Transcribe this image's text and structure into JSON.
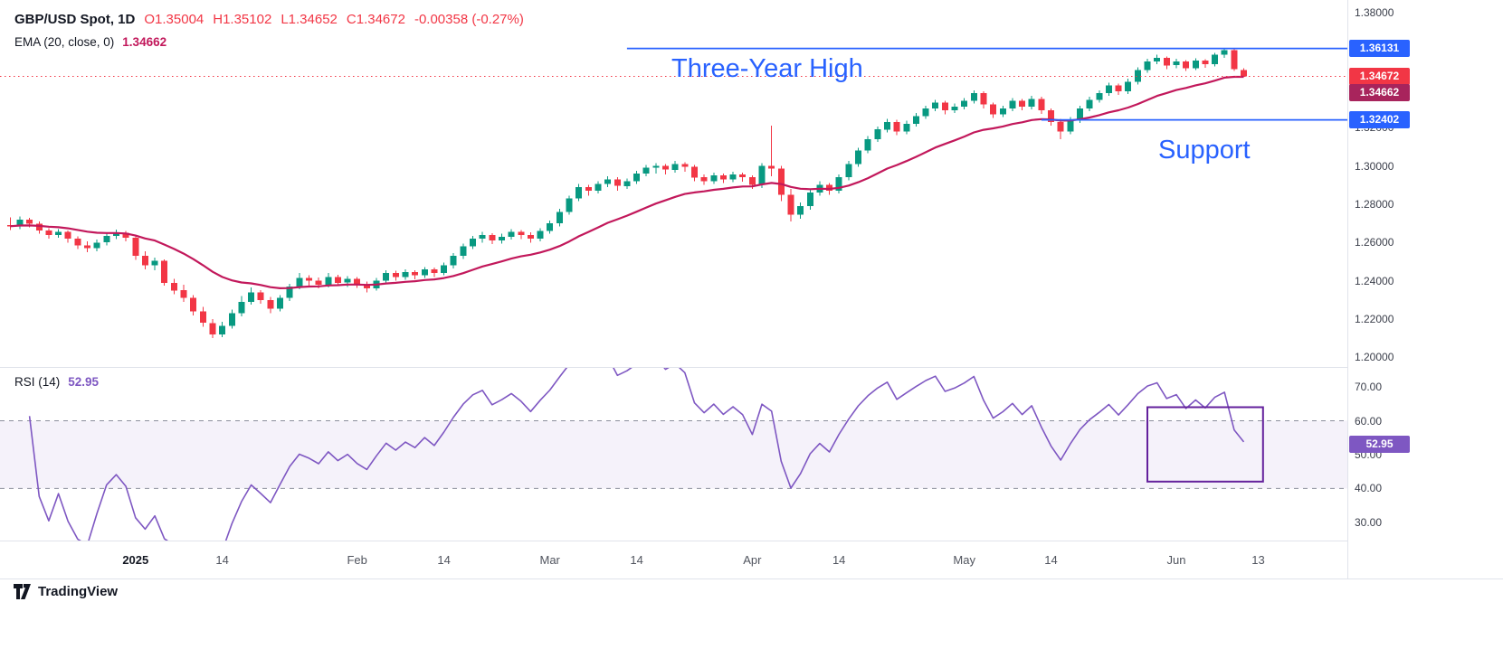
{
  "header": {
    "symbol": "GBP/USD Spot, 1D",
    "o": "O1.35004",
    "h": "H1.35102",
    "l": "L1.34652",
    "c": "C1.34672",
    "change": "-0.00358 (-0.27%)",
    "ema_label": "EMA (20, close, 0)",
    "ema_value": "1.34662"
  },
  "rsi_header": {
    "label": "RSI (14)",
    "value": "52.95"
  },
  "annotations": {
    "high_label": "Three-Year High",
    "support_label": "Support"
  },
  "watermark": {
    "text": "TradingView"
  },
  "colors": {
    "up": "#089981",
    "down": "#f23645",
    "ema": "#c2185b",
    "level": "#2962ff",
    "rsi": "#7e57c2",
    "rsi_band_line": "#8b8e9c",
    "rsi_box": "#63209c"
  },
  "price_axis": {
    "ticks": [
      {
        "label": "1.38000",
        "price": 1.38
      },
      {
        "label": "1.32000",
        "price": 1.32
      },
      {
        "label": "1.30000",
        "price": 1.3
      },
      {
        "label": "1.28000",
        "price": 1.28
      },
      {
        "label": "1.26000",
        "price": 1.26
      },
      {
        "label": "1.24000",
        "price": 1.24
      },
      {
        "label": "1.22000",
        "price": 1.22
      },
      {
        "label": "1.20000",
        "price": 1.2
      }
    ],
    "badges": [
      {
        "text": "1.36131",
        "price": 1.36131,
        "bg": "#2962ff"
      },
      {
        "text": "1.34672",
        "price": 1.34672,
        "bg": "#f23645"
      },
      {
        "text": "1.34662",
        "price": 1.34662,
        "bg": "#a8245c"
      },
      {
        "text": "1.32402",
        "price": 1.32402,
        "bg": "#2962ff"
      }
    ]
  },
  "rsi_axis": {
    "ticks": [
      {
        "label": "70.00",
        "v": 70
      },
      {
        "label": "60.00",
        "v": 60
      },
      {
        "label": "50.00",
        "v": 50
      },
      {
        "label": "40.00",
        "v": 40
      },
      {
        "label": "30.00",
        "v": 30
      }
    ],
    "badge": {
      "text": "52.95",
      "v": 52.95,
      "bg": "#7e57c2"
    }
  },
  "time_axis": [
    {
      "label": "2025",
      "i": 13,
      "major": true
    },
    {
      "label": "14",
      "i": 22
    },
    {
      "label": "Feb",
      "i": 36
    },
    {
      "label": "14",
      "i": 45
    },
    {
      "label": "Mar",
      "i": 56
    },
    {
      "label": "14",
      "i": 65
    },
    {
      "label": "Apr",
      "i": 77
    },
    {
      "label": "14",
      "i": 86
    },
    {
      "label": "May",
      "i": 99
    },
    {
      "label": "14",
      "i": 108
    },
    {
      "label": "Jun",
      "i": 121
    },
    {
      "label": "13",
      "i": 129.5
    }
  ],
  "chart_data": {
    "type": "candlestick",
    "title": "GBP/USD Spot, 1D",
    "xlabel": "",
    "ylabel": "",
    "price_ylim": [
      1.195,
      1.3866
    ],
    "last_price": 1.34672,
    "ohlc_readout": {
      "open": 1.35004,
      "high": 1.35102,
      "low": 1.34652,
      "close": 1.34672,
      "change": -0.00358,
      "change_pct": -0.27
    },
    "overlays": [
      {
        "name": "EMA",
        "type": "ema",
        "period": 20,
        "source": "close",
        "offset": 0,
        "last_value": 1.34662
      }
    ],
    "levels": [
      {
        "price": 1.36131,
        "label": "Three-Year High",
        "from_i": 64
      },
      {
        "price": 1.32402,
        "label": "Support",
        "from_i": 107
      }
    ],
    "subpanel": {
      "type": "rsi",
      "period": 14,
      "last_value": 52.95,
      "band": [
        40,
        60
      ],
      "ylim": [
        24.6,
        75.9
      ],
      "box": {
        "i1": 118,
        "i2": 130,
        "top": 64,
        "bottom": 42
      }
    },
    "candles": [
      [
        1.269,
        1.273,
        1.2665,
        1.2685
      ],
      [
        1.2685,
        1.2735,
        1.267,
        1.272
      ],
      [
        1.272,
        1.2728,
        1.268,
        1.2698
      ],
      [
        1.2698,
        1.271,
        1.2645,
        1.2662
      ],
      [
        1.2662,
        1.2675,
        1.262,
        1.264
      ],
      [
        1.264,
        1.267,
        1.2625,
        1.2655
      ],
      [
        1.2655,
        1.2662,
        1.26,
        1.262
      ],
      [
        1.262,
        1.2632,
        1.2565,
        1.2585
      ],
      [
        1.2585,
        1.2605,
        1.255,
        1.257
      ],
      [
        1.257,
        1.2615,
        1.2555,
        1.26
      ],
      [
        1.26,
        1.265,
        1.2585,
        1.2635
      ],
      [
        1.2635,
        1.2668,
        1.2618,
        1.265
      ],
      [
        1.265,
        1.266,
        1.2605,
        1.2625
      ],
      [
        1.2625,
        1.2638,
        1.251,
        1.253
      ],
      [
        1.253,
        1.2555,
        1.246,
        1.248
      ],
      [
        1.248,
        1.252,
        1.2455,
        1.2505
      ],
      [
        1.2505,
        1.2512,
        1.2375,
        1.239
      ],
      [
        1.239,
        1.241,
        1.233,
        1.235
      ],
      [
        1.235,
        1.238,
        1.229,
        1.231
      ],
      [
        1.231,
        1.2325,
        1.222,
        1.224
      ],
      [
        1.224,
        1.2265,
        1.216,
        1.218
      ],
      [
        1.218,
        1.22,
        1.21,
        1.212
      ],
      [
        1.212,
        1.2185,
        1.2105,
        1.2165
      ],
      [
        1.2165,
        1.225,
        1.215,
        1.223
      ],
      [
        1.223,
        1.232,
        1.2215,
        1.229
      ],
      [
        1.229,
        1.2365,
        1.2275,
        1.234
      ],
      [
        1.234,
        1.235,
        1.228,
        1.23
      ],
      [
        1.23,
        1.2315,
        1.223,
        1.2255
      ],
      [
        1.2255,
        1.2325,
        1.224,
        1.231
      ],
      [
        1.231,
        1.2385,
        1.2295,
        1.237
      ],
      [
        1.237,
        1.244,
        1.2355,
        1.2415
      ],
      [
        1.2415,
        1.243,
        1.2375,
        1.24
      ],
      [
        1.24,
        1.2418,
        1.236,
        1.238
      ],
      [
        1.238,
        1.244,
        1.2365,
        1.242
      ],
      [
        1.242,
        1.2432,
        1.2372,
        1.239
      ],
      [
        1.239,
        1.2425,
        1.2368,
        1.241
      ],
      [
        1.241,
        1.242,
        1.2362,
        1.238
      ],
      [
        1.238,
        1.2395,
        1.234,
        1.236
      ],
      [
        1.236,
        1.2415,
        1.2348,
        1.24
      ],
      [
        1.24,
        1.2455,
        1.2388,
        1.244
      ],
      [
        1.244,
        1.2452,
        1.24,
        1.242
      ],
      [
        1.242,
        1.246,
        1.2405,
        1.2445
      ],
      [
        1.2445,
        1.2455,
        1.2408,
        1.243
      ],
      [
        1.243,
        1.2472,
        1.2415,
        1.246
      ],
      [
        1.246,
        1.247,
        1.242,
        1.244
      ],
      [
        1.244,
        1.2495,
        1.2428,
        1.248
      ],
      [
        1.248,
        1.2545,
        1.2465,
        1.253
      ],
      [
        1.253,
        1.2595,
        1.2515,
        1.258
      ],
      [
        1.258,
        1.2635,
        1.2565,
        1.262
      ],
      [
        1.262,
        1.2655,
        1.26,
        1.264
      ],
      [
        1.264,
        1.2648,
        1.2592,
        1.261
      ],
      [
        1.261,
        1.2645,
        1.2595,
        1.263
      ],
      [
        1.263,
        1.267,
        1.2615,
        1.2655
      ],
      [
        1.2655,
        1.2665,
        1.2618,
        1.264
      ],
      [
        1.264,
        1.2652,
        1.26,
        1.262
      ],
      [
        1.262,
        1.2675,
        1.2605,
        1.266
      ],
      [
        1.266,
        1.2715,
        1.2645,
        1.27
      ],
      [
        1.27,
        1.2775,
        1.2685,
        1.276
      ],
      [
        1.276,
        1.2845,
        1.2745,
        1.283
      ],
      [
        1.283,
        1.2905,
        1.2815,
        1.289
      ],
      [
        1.289,
        1.29,
        1.2845,
        1.287
      ],
      [
        1.287,
        1.292,
        1.2855,
        1.2905
      ],
      [
        1.2905,
        1.2945,
        1.289,
        1.293
      ],
      [
        1.293,
        1.294,
        1.287,
        1.2895
      ],
      [
        1.2895,
        1.2935,
        1.288,
        1.292
      ],
      [
        1.292,
        1.2975,
        1.2905,
        1.296
      ],
      [
        1.296,
        1.3005,
        1.2945,
        1.299
      ],
      [
        1.299,
        1.3015,
        1.296,
        1.3
      ],
      [
        1.3,
        1.301,
        1.2955,
        1.298
      ],
      [
        1.298,
        1.3025,
        1.2965,
        1.301
      ],
      [
        1.301,
        1.3018,
        1.297,
        1.2995
      ],
      [
        1.2995,
        1.3005,
        1.292,
        1.294
      ],
      [
        1.294,
        1.2955,
        1.29,
        1.292
      ],
      [
        1.292,
        1.2965,
        1.2905,
        1.295
      ],
      [
        1.295,
        1.296,
        1.291,
        1.293
      ],
      [
        1.293,
        1.297,
        1.2915,
        1.2955
      ],
      [
        1.2955,
        1.2965,
        1.2918,
        1.294
      ],
      [
        1.294,
        1.295,
        1.288,
        1.29
      ],
      [
        1.29,
        1.3015,
        1.2885,
        1.3
      ],
      [
        1.3,
        1.321,
        1.2945,
        1.2985
      ],
      [
        1.2985,
        1.3,
        1.2815,
        1.285
      ],
      [
        1.285,
        1.288,
        1.271,
        1.2745
      ],
      [
        1.2745,
        1.281,
        1.2725,
        1.279
      ],
      [
        1.279,
        1.2875,
        1.277,
        1.286
      ],
      [
        1.286,
        1.292,
        1.2845,
        1.29
      ],
      [
        1.29,
        1.291,
        1.285,
        1.287
      ],
      [
        1.287,
        1.2955,
        1.2855,
        1.294
      ],
      [
        1.294,
        1.3025,
        1.2925,
        1.301
      ],
      [
        1.301,
        1.3095,
        1.2995,
        1.308
      ],
      [
        1.308,
        1.3155,
        1.3065,
        1.314
      ],
      [
        1.314,
        1.3205,
        1.3125,
        1.319
      ],
      [
        1.319,
        1.3245,
        1.3175,
        1.323
      ],
      [
        1.323,
        1.324,
        1.316,
        1.318
      ],
      [
        1.318,
        1.3235,
        1.3165,
        1.322
      ],
      [
        1.322,
        1.3275,
        1.3205,
        1.326
      ],
      [
        1.326,
        1.3315,
        1.3245,
        1.33
      ],
      [
        1.33,
        1.3345,
        1.3285,
        1.333
      ],
      [
        1.333,
        1.334,
        1.327,
        1.329
      ],
      [
        1.329,
        1.3325,
        1.3275,
        1.331
      ],
      [
        1.331,
        1.3355,
        1.3295,
        1.334
      ],
      [
        1.334,
        1.3395,
        1.3325,
        1.338
      ],
      [
        1.338,
        1.339,
        1.33,
        1.332
      ],
      [
        1.332,
        1.333,
        1.325,
        1.327
      ],
      [
        1.327,
        1.3315,
        1.3255,
        1.33
      ],
      [
        1.33,
        1.3355,
        1.3285,
        1.334
      ],
      [
        1.334,
        1.335,
        1.329,
        1.331
      ],
      [
        1.331,
        1.3365,
        1.3295,
        1.335
      ],
      [
        1.335,
        1.336,
        1.3272,
        1.329
      ],
      [
        1.329,
        1.33,
        1.321,
        1.323
      ],
      [
        1.323,
        1.3245,
        1.314,
        1.318
      ],
      [
        1.318,
        1.3255,
        1.3165,
        1.324
      ],
      [
        1.324,
        1.3315,
        1.3225,
        1.33
      ],
      [
        1.33,
        1.336,
        1.3285,
        1.3345
      ],
      [
        1.3345,
        1.3395,
        1.333,
        1.338
      ],
      [
        1.338,
        1.3435,
        1.3365,
        1.342
      ],
      [
        1.342,
        1.343,
        1.337,
        1.339
      ],
      [
        1.339,
        1.3455,
        1.3375,
        1.344
      ],
      [
        1.344,
        1.3515,
        1.3425,
        1.35
      ],
      [
        1.35,
        1.356,
        1.3485,
        1.3545
      ],
      [
        1.3545,
        1.358,
        1.353,
        1.3565
      ],
      [
        1.3565,
        1.3572,
        1.3505,
        1.3525
      ],
      [
        1.3525,
        1.356,
        1.351,
        1.3545
      ],
      [
        1.3545,
        1.3552,
        1.3495,
        1.351
      ],
      [
        1.351,
        1.3562,
        1.35,
        1.355
      ],
      [
        1.355,
        1.3558,
        1.3512,
        1.353
      ],
      [
        1.353,
        1.359,
        1.352,
        1.358
      ],
      [
        1.358,
        1.36131,
        1.3565,
        1.3605
      ],
      [
        1.3605,
        1.361,
        1.3495,
        1.3505
      ],
      [
        1.35004,
        1.35102,
        1.34652,
        1.34672
      ]
    ]
  }
}
